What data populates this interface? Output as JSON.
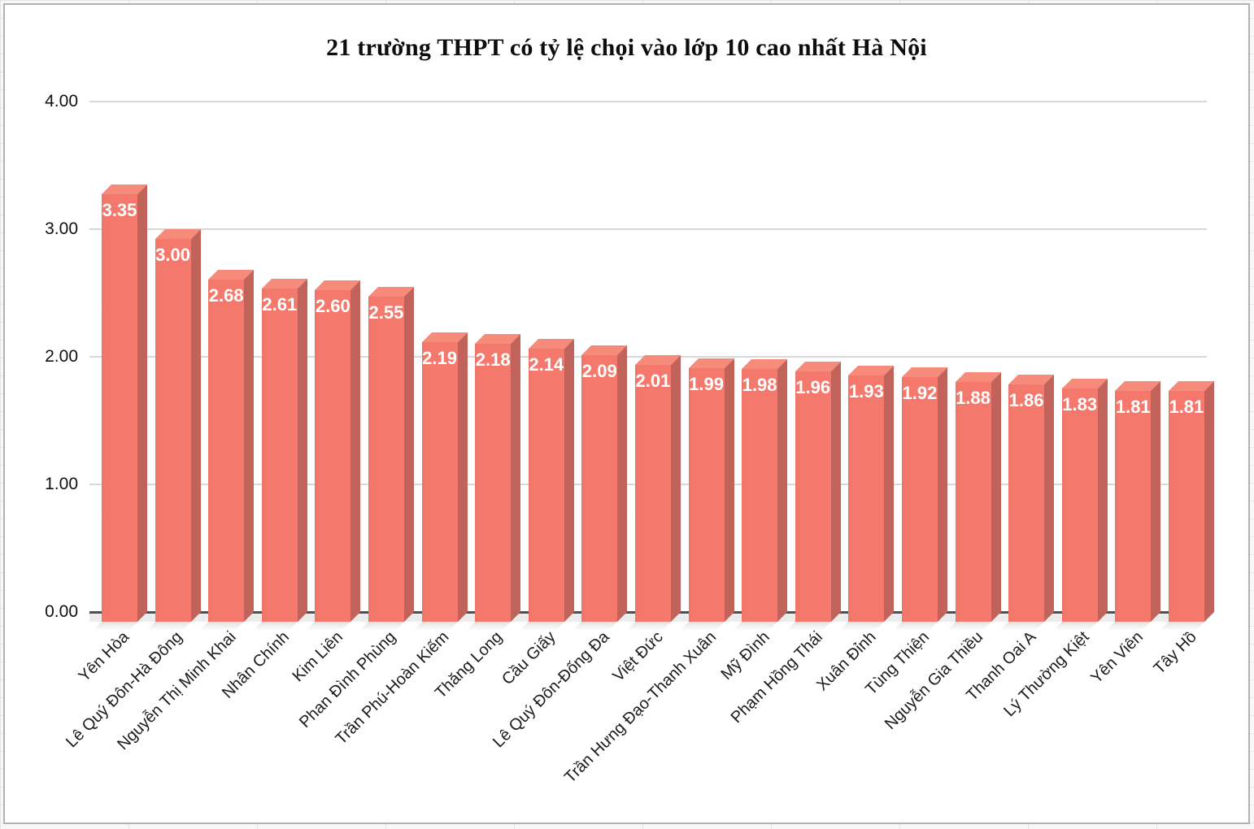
{
  "chart_data": {
    "type": "bar",
    "title": "21 trường THPT có tỷ lệ chọi vào lớp 10 cao nhất Hà Nội",
    "categories": [
      "Yên Hòa",
      "Lê Quý Đôn-Hà Đông",
      "Nguyễn Thị Minh Khai",
      "Nhân Chính",
      "Kim Liên",
      "Phan Đình Phùng",
      "Trần Phú-Hoàn Kiếm",
      "Thăng Long",
      "Cầu Giấy",
      "Lê Quý Đôn-Đống Đa",
      "Việt Đức",
      "Trần Hưng Đạo-Thanh Xuân",
      "Mỹ Đình",
      "Phạm Hồng Thái",
      "Xuân Đỉnh",
      "Tùng Thiện",
      "Nguyễn Gia Thiều",
      "Thanh Oai A",
      "Lý Thường Kiệt",
      "Yên Viên",
      "Tây Hồ"
    ],
    "values": [
      3.35,
      3.0,
      2.68,
      2.61,
      2.6,
      2.55,
      2.19,
      2.18,
      2.14,
      2.09,
      2.01,
      1.99,
      1.98,
      1.96,
      1.93,
      1.92,
      1.88,
      1.86,
      1.83,
      1.81,
      1.81
    ],
    "value_label_decimals": 2,
    "xlabel": "",
    "ylabel": "",
    "ylim": [
      0,
      4
    ],
    "y_ticks": [
      "4.00",
      "3.00",
      "2.00",
      "1.00",
      "0.00"
    ],
    "grid": "horizontal",
    "legend": "none",
    "bar_style": "3d-column",
    "colors": {
      "bar_front": "#F4786C",
      "bar_side": "#C2635B",
      "bar_top": "#F68B7C",
      "value_text": "#FFFFFF",
      "gridline": "#D8D8D8",
      "zero_line": "#4F4F4F",
      "floor": "#ECECEC",
      "shadow": "#E2E2E2",
      "title_text": "#0D0D0D",
      "axis_text": "#111111",
      "panel_border": "#B2B2B2",
      "panel_background": "#FFFFFF",
      "outer_background": "#F8F8F8"
    }
  }
}
